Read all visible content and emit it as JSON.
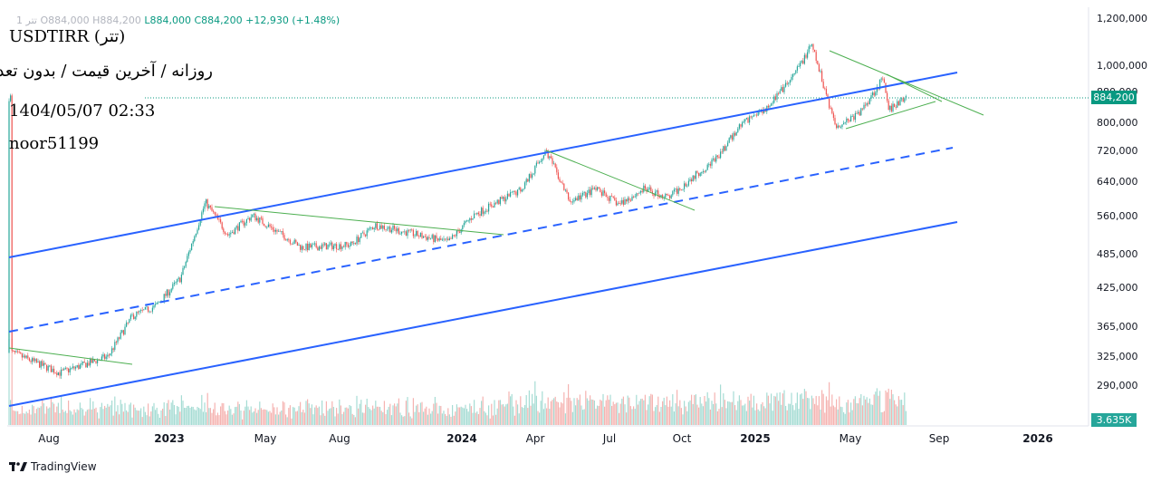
{
  "header": {
    "symbol": "USDTIRR (تتر)",
    "subtitle": "روزانه / آخرین قیمت / بدون تعدیل",
    "datetime": "1404/05/07 02:33",
    "author": "noor51199",
    "ohlc": {
      "prefix": "1 تتر",
      "open": "O884,000",
      "high": "H884,200",
      "low": "L884,000",
      "close": "C884,200",
      "change": "+12,930 (+1.48%)"
    }
  },
  "price_axis": [
    "1,200,000",
    "1,000,000",
    "880,000",
    "800,000",
    "720,000",
    "640,000",
    "560,000",
    "485,000",
    "425,000",
    "365,000",
    "325,000",
    "290,000"
  ],
  "time_axis": [
    {
      "label": "Aug",
      "year": false
    },
    {
      "label": "2023",
      "year": true
    },
    {
      "label": "May",
      "year": false
    },
    {
      "label": "Aug",
      "year": false
    },
    {
      "label": "2024",
      "year": true
    },
    {
      "label": "Apr",
      "year": false
    },
    {
      "label": "Jul",
      "year": false
    },
    {
      "label": "Oct",
      "year": false
    },
    {
      "label": "2025",
      "year": true
    },
    {
      "label": "May",
      "year": false
    },
    {
      "label": "Sep",
      "year": false
    },
    {
      "label": "2026",
      "year": true
    }
  ],
  "tags": {
    "last_price": "884,200",
    "volume": "3.635K"
  },
  "brand": "TradingView",
  "colors": {
    "up": "#26a69a",
    "down": "#ef5350",
    "channel": "#2962ff",
    "trend": "#4caf50",
    "volume_up": "#a6dcd4",
    "volume_down": "#f5b3b1",
    "price_tag": "#089981",
    "volume_tag": "#26a69a"
  },
  "chart_data": {
    "type": "candlestick",
    "scale": "log",
    "ylim": [
      270000,
      1250000
    ],
    "last_price": 884200,
    "waypoints": [
      {
        "date": "2022-06",
        "price": 330000
      },
      {
        "date": "2022-08",
        "price": 305000
      },
      {
        "date": "2022-10",
        "price": 325000
      },
      {
        "date": "2022-11",
        "price": 380000
      },
      {
        "date": "2022-12",
        "price": 395000
      },
      {
        "date": "2023-01",
        "price": 440000
      },
      {
        "date": "2023-02",
        "price": 590000
      },
      {
        "date": "2023-03",
        "price": 520000
      },
      {
        "date": "2023-04",
        "price": 560000
      },
      {
        "date": "2023-06",
        "price": 495000
      },
      {
        "date": "2023-08",
        "price": 500000
      },
      {
        "date": "2023-09",
        "price": 540000
      },
      {
        "date": "2023-12",
        "price": 505000
      },
      {
        "date": "2024-01",
        "price": 560000
      },
      {
        "date": "2024-03",
        "price": 620000
      },
      {
        "date": "2024-04",
        "price": 720000
      },
      {
        "date": "2024-05",
        "price": 590000
      },
      {
        "date": "2024-06",
        "price": 620000
      },
      {
        "date": "2024-07",
        "price": 585000
      },
      {
        "date": "2024-08",
        "price": 620000
      },
      {
        "date": "2024-09",
        "price": 600000
      },
      {
        "date": "2024-10",
        "price": 650000
      },
      {
        "date": "2024-11",
        "price": 700000
      },
      {
        "date": "2024-12",
        "price": 800000
      },
      {
        "date": "2025-01",
        "price": 850000
      },
      {
        "date": "2025-02",
        "price": 940000
      },
      {
        "date": "2025-03",
        "price": 1080000
      },
      {
        "date": "2025-04",
        "price": 790000
      },
      {
        "date": "2025-05",
        "price": 830000
      },
      {
        "date": "2025-06",
        "price": 950000
      },
      {
        "date": "2025-06",
        "price": 840000
      },
      {
        "date": "2025-07",
        "price": 884200
      }
    ]
  }
}
